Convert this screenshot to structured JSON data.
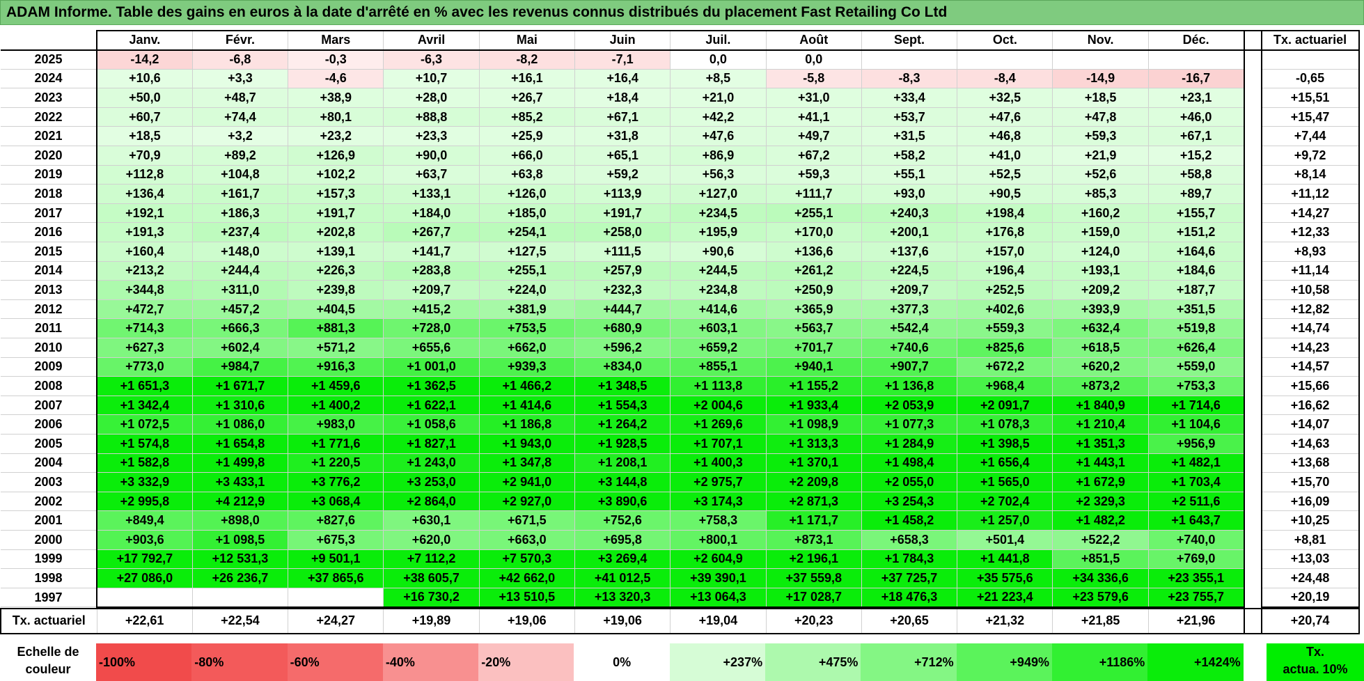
{
  "title": "ADAM Informe. Table des gains en euros à la date d'arrêté en % avec les revenus connus distribués du placement Fast Retailing Co Ltd",
  "months": [
    "Janv.",
    "Févr.",
    "Mars",
    "Avril",
    "Mai",
    "Juin",
    "Juil.",
    "Août",
    "Sept.",
    "Oct.",
    "Nov.",
    "Déc."
  ],
  "tx_header": "Tx. actuariel",
  "rows": [
    {
      "year": "2025",
      "tx": "",
      "values": [
        "-14,2",
        "-6,8",
        "-0,3",
        "-6,3",
        "-8,2",
        "-7,1",
        "0,0",
        "0,0",
        "",
        "",
        "",
        ""
      ]
    },
    {
      "year": "2024",
      "tx": "-0,65",
      "values": [
        "+10,6",
        "+3,3",
        "-4,6",
        "+10,7",
        "+16,1",
        "+16,4",
        "+8,5",
        "-5,8",
        "-8,3",
        "-8,4",
        "-14,9",
        "-16,7"
      ]
    },
    {
      "year": "2023",
      "tx": "+15,51",
      "values": [
        "+50,0",
        "+48,7",
        "+38,9",
        "+28,0",
        "+26,7",
        "+18,4",
        "+21,0",
        "+31,0",
        "+33,4",
        "+32,5",
        "+18,5",
        "+23,1"
      ]
    },
    {
      "year": "2022",
      "tx": "+15,47",
      "values": [
        "+60,7",
        "+74,4",
        "+80,1",
        "+88,8",
        "+85,2",
        "+67,1",
        "+42,2",
        "+41,1",
        "+53,7",
        "+47,6",
        "+47,8",
        "+46,0"
      ]
    },
    {
      "year": "2021",
      "tx": "+7,44",
      "values": [
        "+18,5",
        "+3,2",
        "+23,2",
        "+23,3",
        "+25,9",
        "+31,8",
        "+47,6",
        "+49,7",
        "+31,5",
        "+46,8",
        "+59,3",
        "+67,1"
      ]
    },
    {
      "year": "2020",
      "tx": "+9,72",
      "values": [
        "+70,9",
        "+89,2",
        "+126,9",
        "+90,0",
        "+66,0",
        "+65,1",
        "+86,9",
        "+67,2",
        "+58,2",
        "+41,0",
        "+21,9",
        "+15,2"
      ]
    },
    {
      "year": "2019",
      "tx": "+8,14",
      "values": [
        "+112,8",
        "+104,8",
        "+102,2",
        "+63,7",
        "+63,8",
        "+59,2",
        "+56,3",
        "+59,3",
        "+55,1",
        "+52,5",
        "+52,6",
        "+58,8"
      ]
    },
    {
      "year": "2018",
      "tx": "+11,12",
      "values": [
        "+136,4",
        "+161,7",
        "+157,3",
        "+133,1",
        "+126,0",
        "+113,9",
        "+127,0",
        "+111,7",
        "+93,0",
        "+90,5",
        "+85,3",
        "+89,7"
      ]
    },
    {
      "year": "2017",
      "tx": "+14,27",
      "values": [
        "+192,1",
        "+186,3",
        "+191,7",
        "+184,0",
        "+185,0",
        "+191,7",
        "+234,5",
        "+255,1",
        "+240,3",
        "+198,4",
        "+160,2",
        "+155,7"
      ]
    },
    {
      "year": "2016",
      "tx": "+12,33",
      "values": [
        "+191,3",
        "+237,4",
        "+202,8",
        "+267,7",
        "+254,1",
        "+258,0",
        "+195,9",
        "+170,0",
        "+200,1",
        "+176,8",
        "+159,0",
        "+151,2"
      ]
    },
    {
      "year": "2015",
      "tx": "+8,93",
      "values": [
        "+160,4",
        "+148,0",
        "+139,1",
        "+141,7",
        "+127,5",
        "+111,5",
        "+90,6",
        "+136,6",
        "+137,6",
        "+157,0",
        "+124,0",
        "+164,6"
      ]
    },
    {
      "year": "2014",
      "tx": "+11,14",
      "values": [
        "+213,2",
        "+244,4",
        "+226,3",
        "+283,8",
        "+255,1",
        "+257,9",
        "+244,5",
        "+261,2",
        "+224,5",
        "+196,4",
        "+193,1",
        "+184,6"
      ]
    },
    {
      "year": "2013",
      "tx": "+10,58",
      "values": [
        "+344,8",
        "+311,0",
        "+239,8",
        "+209,7",
        "+224,0",
        "+232,3",
        "+234,8",
        "+250,9",
        "+209,7",
        "+252,5",
        "+209,2",
        "+187,7"
      ]
    },
    {
      "year": "2012",
      "tx": "+12,82",
      "values": [
        "+472,7",
        "+457,2",
        "+404,5",
        "+415,2",
        "+381,9",
        "+444,7",
        "+414,6",
        "+365,9",
        "+377,3",
        "+402,6",
        "+393,9",
        "+351,5"
      ]
    },
    {
      "year": "2011",
      "tx": "+14,74",
      "values": [
        "+714,3",
        "+666,3",
        "+881,3",
        "+728,0",
        "+753,5",
        "+680,9",
        "+603,1",
        "+563,7",
        "+542,4",
        "+559,3",
        "+632,4",
        "+519,8"
      ]
    },
    {
      "year": "2010",
      "tx": "+14,23",
      "values": [
        "+627,3",
        "+602,4",
        "+571,2",
        "+655,6",
        "+662,0",
        "+596,2",
        "+659,2",
        "+701,7",
        "+740,6",
        "+825,6",
        "+618,5",
        "+626,4"
      ]
    },
    {
      "year": "2009",
      "tx": "+14,57",
      "values": [
        "+773,0",
        "+984,7",
        "+916,3",
        "+1 001,0",
        "+939,3",
        "+834,0",
        "+855,1",
        "+940,1",
        "+907,7",
        "+672,2",
        "+620,2",
        "+559,0"
      ]
    },
    {
      "year": "2008",
      "tx": "+15,66",
      "values": [
        "+1 651,3",
        "+1 671,7",
        "+1 459,6",
        "+1 362,5",
        "+1 466,2",
        "+1 348,5",
        "+1 113,8",
        "+1 155,2",
        "+1 136,8",
        "+968,4",
        "+873,2",
        "+753,3"
      ]
    },
    {
      "year": "2007",
      "tx": "+16,62",
      "values": [
        "+1 342,4",
        "+1 310,6",
        "+1 400,2",
        "+1 622,1",
        "+1 414,6",
        "+1 554,3",
        "+2 004,6",
        "+1 933,4",
        "+2 053,9",
        "+2 091,7",
        "+1 840,9",
        "+1 714,6"
      ]
    },
    {
      "year": "2006",
      "tx": "+14,07",
      "values": [
        "+1 072,5",
        "+1 086,0",
        "+983,0",
        "+1 058,6",
        "+1 186,8",
        "+1 264,2",
        "+1 269,6",
        "+1 098,9",
        "+1 077,3",
        "+1 078,3",
        "+1 210,4",
        "+1 104,6"
      ]
    },
    {
      "year": "2005",
      "tx": "+14,63",
      "values": [
        "+1 574,8",
        "+1 654,8",
        "+1 771,6",
        "+1 827,1",
        "+1 943,0",
        "+1 928,5",
        "+1 707,1",
        "+1 313,3",
        "+1 284,9",
        "+1 398,5",
        "+1 351,3",
        "+956,9"
      ]
    },
    {
      "year": "2004",
      "tx": "+13,68",
      "values": [
        "+1 582,8",
        "+1 499,8",
        "+1 220,5",
        "+1 243,0",
        "+1 347,8",
        "+1 208,1",
        "+1 400,3",
        "+1 370,1",
        "+1 498,4",
        "+1 656,4",
        "+1 443,1",
        "+1 482,1"
      ]
    },
    {
      "year": "2003",
      "tx": "+15,70",
      "values": [
        "+3 332,9",
        "+3 433,1",
        "+3 776,2",
        "+3 253,0",
        "+2 941,0",
        "+3 144,8",
        "+2 975,7",
        "+2 209,8",
        "+2 055,0",
        "+1 565,0",
        "+1 672,9",
        "+1 703,4"
      ]
    },
    {
      "year": "2002",
      "tx": "+16,09",
      "values": [
        "+2 995,8",
        "+4 212,9",
        "+3 068,4",
        "+2 864,0",
        "+2 927,0",
        "+3 890,6",
        "+3 174,3",
        "+2 871,3",
        "+3 254,3",
        "+2 702,4",
        "+2 329,3",
        "+2 511,6"
      ]
    },
    {
      "year": "2001",
      "tx": "+10,25",
      "values": [
        "+849,4",
        "+898,0",
        "+827,6",
        "+630,1",
        "+671,5",
        "+752,6",
        "+758,3",
        "+1 171,7",
        "+1 458,2",
        "+1 257,0",
        "+1 482,2",
        "+1 643,7"
      ]
    },
    {
      "year": "2000",
      "tx": "+8,81",
      "values": [
        "+903,6",
        "+1 098,5",
        "+675,3",
        "+620,0",
        "+663,0",
        "+695,8",
        "+800,1",
        "+873,1",
        "+658,3",
        "+501,4",
        "+522,2",
        "+740,0"
      ]
    },
    {
      "year": "1999",
      "tx": "+13,03",
      "values": [
        "+17 792,7",
        "+12 531,3",
        "+9 501,1",
        "+7 112,2",
        "+7 570,3",
        "+3 269,4",
        "+2 604,9",
        "+2 196,1",
        "+1 784,3",
        "+1 441,8",
        "+851,5",
        "+769,0"
      ]
    },
    {
      "year": "1998",
      "tx": "+24,48",
      "values": [
        "+27 086,0",
        "+26 236,7",
        "+37 865,6",
        "+38 605,7",
        "+42 662,0",
        "+41 012,5",
        "+39 390,1",
        "+37 559,8",
        "+37 725,7",
        "+35 575,6",
        "+34 336,6",
        "+23 355,1"
      ]
    },
    {
      "year": "1997",
      "tx": "+20,19",
      "values": [
        "",
        "",
        "",
        "+16 730,2",
        "+13 510,5",
        "+13 320,3",
        "+13 064,3",
        "+17 028,7",
        "+18 476,3",
        "+21 223,4",
        "+23 579,6",
        "+23 755,7"
      ]
    }
  ],
  "totals": {
    "label": "Tx. actuariel",
    "values": [
      "+22,61",
      "+22,54",
      "+24,27",
      "+19,89",
      "+19,06",
      "+19,06",
      "+19,04",
      "+20,23",
      "+20,65",
      "+21,32",
      "+21,85",
      "+21,96"
    ],
    "tx": "+20,74"
  },
  "scale": {
    "label_line1": "Echelle de",
    "label_line2": "couleur",
    "items": [
      {
        "label": "-100%",
        "color": "#f14b4b",
        "kind": "neg"
      },
      {
        "label": "-80%",
        "color": "#f35a5a",
        "kind": "neg"
      },
      {
        "label": "-60%",
        "color": "#f56b6b",
        "kind": "neg"
      },
      {
        "label": "-40%",
        "color": "#f89090",
        "kind": "neg"
      },
      {
        "label": "-20%",
        "color": "#fbc0c0",
        "kind": "neg"
      },
      {
        "label": "0%",
        "color": "#ffffff",
        "kind": "zero"
      },
      {
        "label": "+237%",
        "color": "#d6fcd6",
        "kind": "pos"
      },
      {
        "label": "+475%",
        "color": "#adf9ad",
        "kind": "pos"
      },
      {
        "label": "+712%",
        "color": "#84f684",
        "kind": "pos"
      },
      {
        "label": "+949%",
        "color": "#5bf35b",
        "kind": "pos"
      },
      {
        "label": "+1186%",
        "color": "#32f032",
        "kind": "pos"
      },
      {
        "label": "+1424%",
        "color": "#0aed0a",
        "kind": "pos"
      }
    ],
    "tx_line1": "Tx.",
    "tx_line2": "actua. 10%",
    "tx_color": "#00ee00"
  }
}
